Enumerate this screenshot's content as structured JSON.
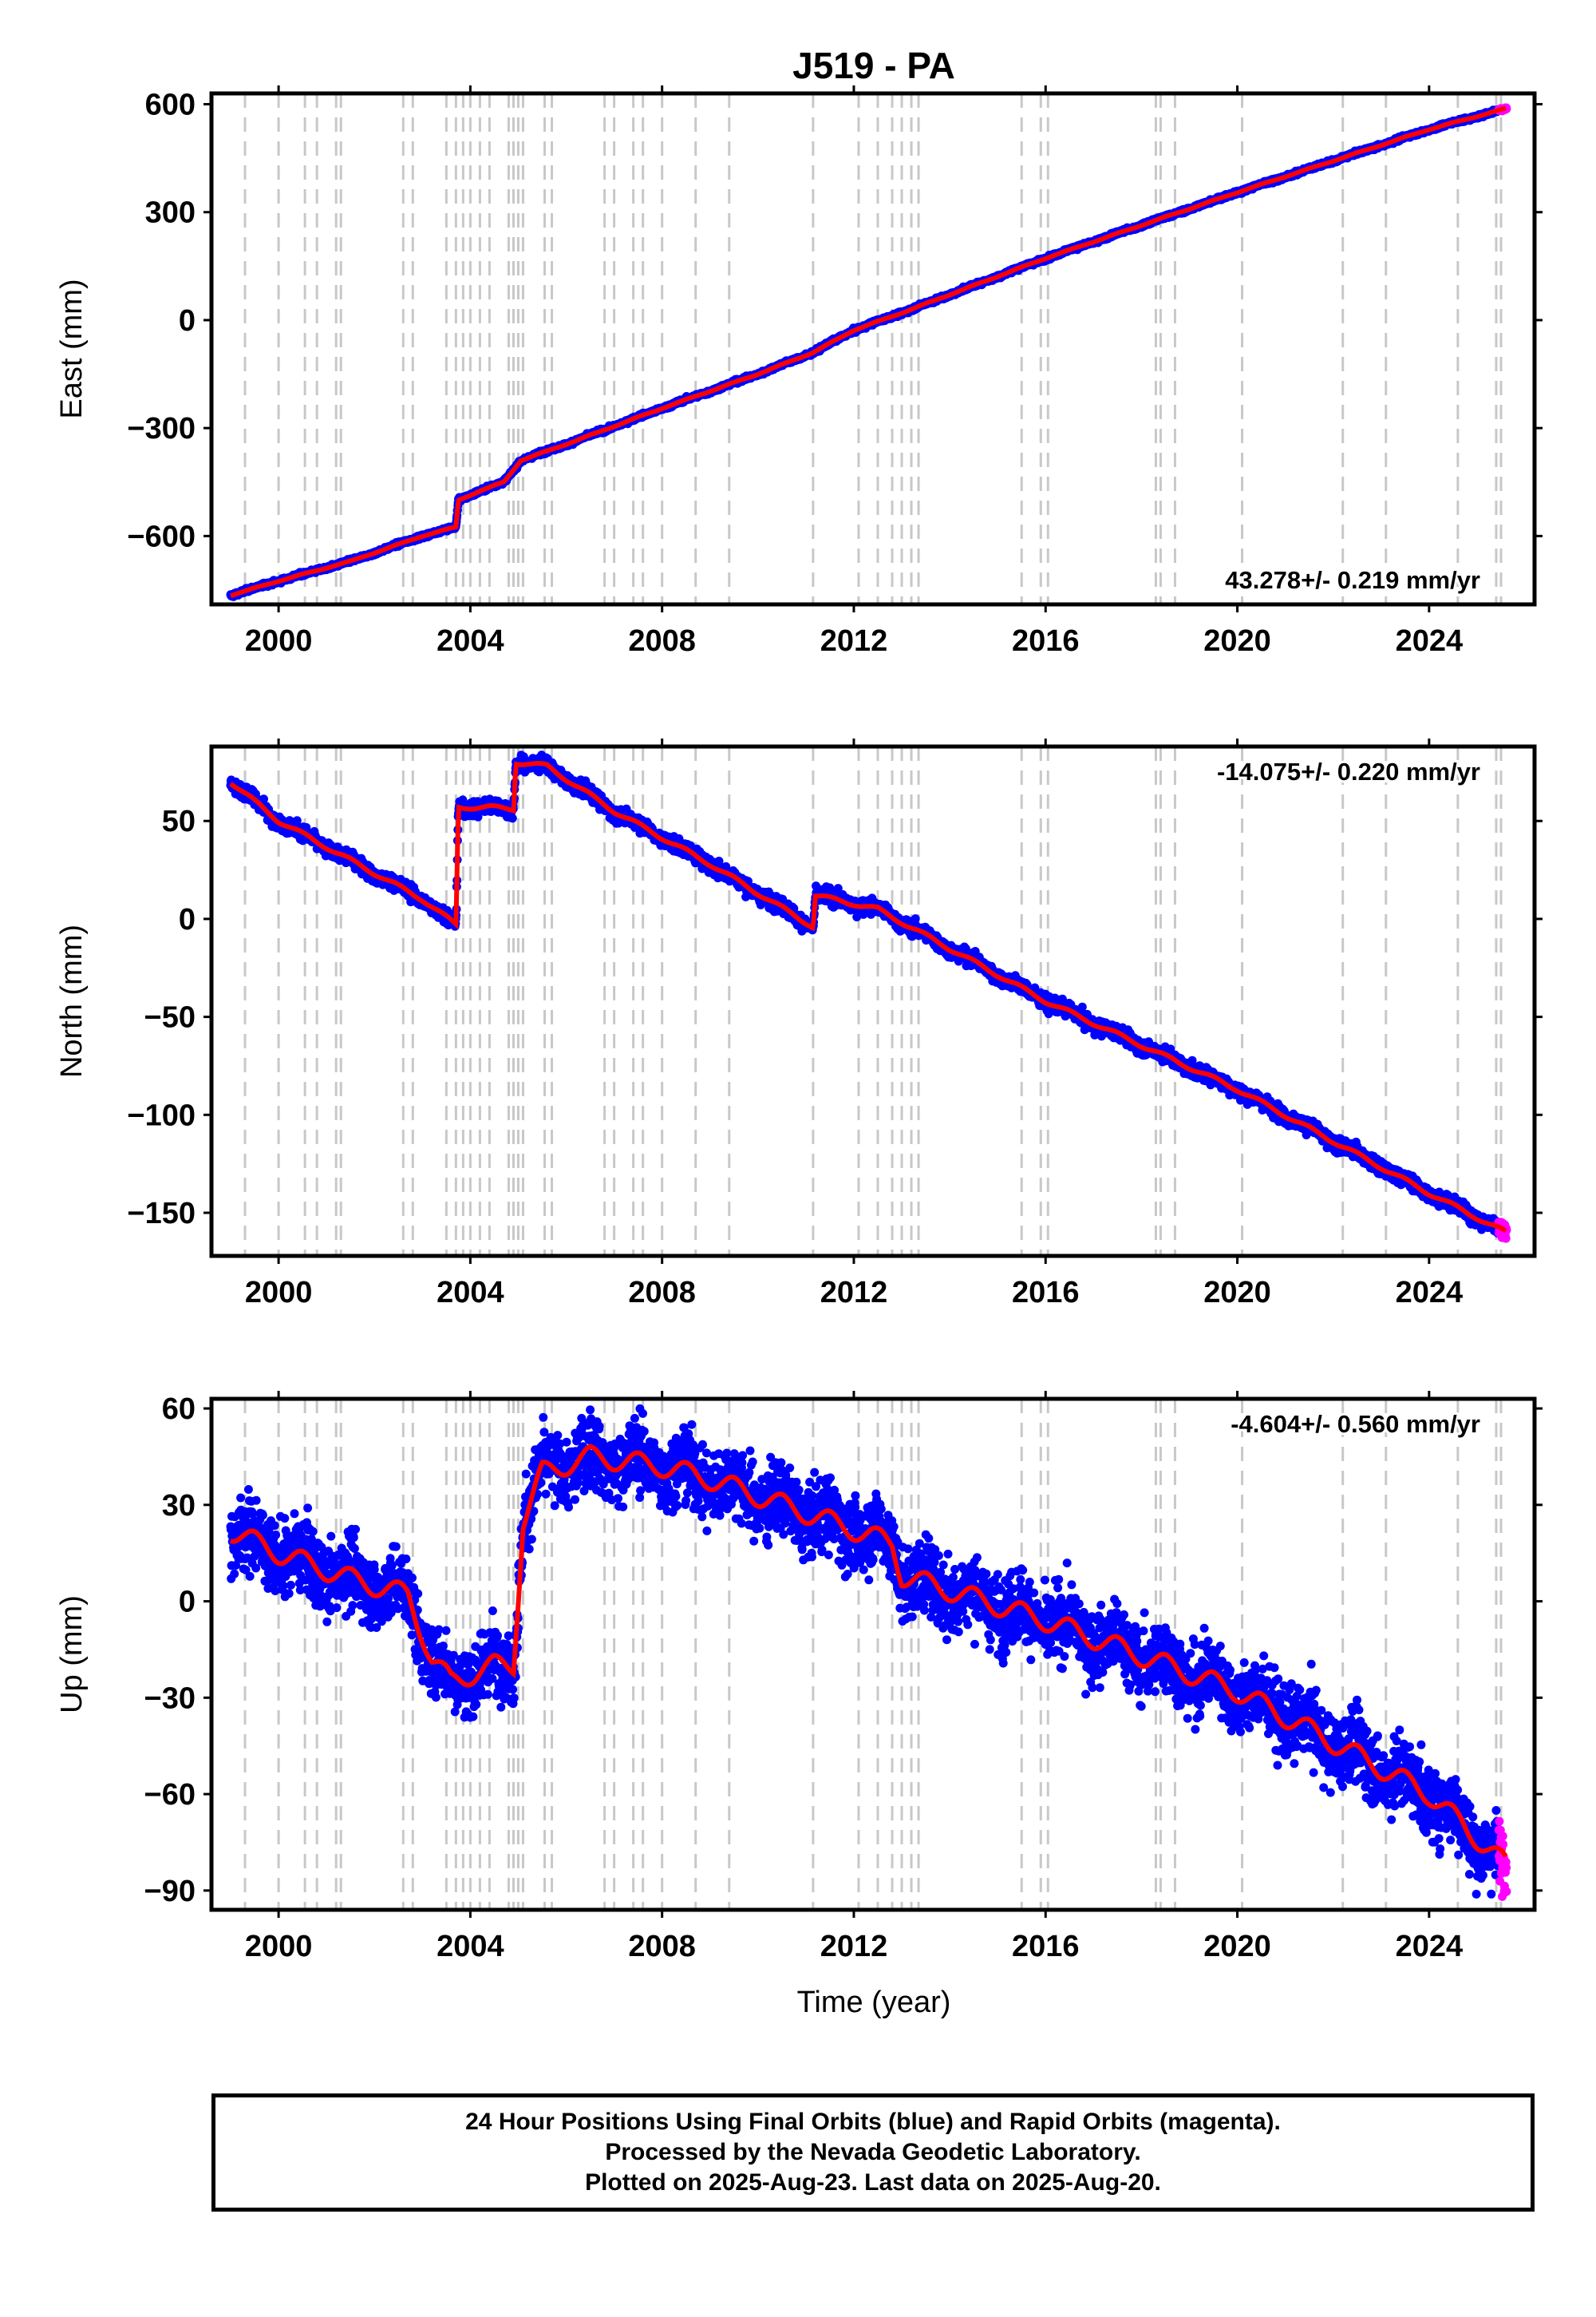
{
  "title": "J519 - PA",
  "xlabel": "Time (year)",
  "footer": {
    "line1": "24 Hour Positions Using Final Orbits (blue) and Rapid Orbits (magenta).",
    "line2": "Processed by the Nevada Geodetic Laboratory.",
    "line3": "Plotted on 2025-Aug-23. Last data on 2025-Aug-20."
  },
  "colors": {
    "final": "#0000ff",
    "rapid": "#ff00ff",
    "model": "#ff0000",
    "event_lines": "#c8c8c8"
  },
  "chart_data": {
    "type": "scatter",
    "x_ticks": [
      2000,
      2004,
      2008,
      2012,
      2016,
      2020,
      2024
    ],
    "x_tick_labels": [
      "2000",
      "2004",
      "2008",
      "2012",
      "2016",
      "2020",
      "2024"
    ],
    "xlim": [
      1998.6,
      2026.2
    ],
    "event_lines": [
      1999.3,
      2000.0,
      2000.55,
      2000.8,
      2001.2,
      2001.3,
      2002.6,
      2002.8,
      2003.5,
      2003.7,
      2003.85,
      2004.0,
      2004.2,
      2004.4,
      2004.8,
      2004.9,
      2005.0,
      2005.1,
      2005.55,
      2005.7,
      2006.8,
      2007.0,
      2007.4,
      2007.6,
      2008.0,
      2008.7,
      2009.4,
      2011.15,
      2012.1,
      2012.5,
      2012.8,
      2013.0,
      2013.2,
      2013.35,
      2015.5,
      2015.9,
      2016.05,
      2018.3,
      2018.4,
      2018.7,
      2020.1,
      2022.2,
      2023.1,
      2024.6,
      2025.4,
      2025.5
    ],
    "panels": [
      {
        "name": "East",
        "ylabel": "East (mm)",
        "ylim": [
          -790,
          630
        ],
        "yticks": [
          -600,
          -300,
          0,
          300,
          600
        ],
        "ytick_labels": [
          "−600",
          "−300",
          "0",
          "300",
          "600"
        ],
        "rate_label": "43.278+/- 0.219 mm/yr",
        "rate_position": "bottom-right",
        "model": [
          [
            1999.0,
            -765
          ],
          [
            2000.0,
            -725
          ],
          [
            2001.5,
            -670
          ],
          [
            2003.0,
            -600
          ],
          [
            2003.7,
            -575
          ],
          [
            2003.75,
            -500
          ],
          [
            2004.2,
            -475
          ],
          [
            2004.7,
            -450
          ],
          [
            2005.05,
            -390
          ],
          [
            2006.0,
            -345
          ],
          [
            2008.0,
            -245
          ],
          [
            2010.0,
            -150
          ],
          [
            2011.15,
            -90
          ],
          [
            2012.0,
            -28
          ],
          [
            2013.0,
            20
          ],
          [
            2016.0,
            172
          ],
          [
            2020.0,
            355
          ],
          [
            2024.0,
            530
          ],
          [
            2025.6,
            588
          ]
        ],
        "noise_sd": 2.5,
        "rapid_start": 2025.45
      },
      {
        "name": "North",
        "ylabel": "North (mm)",
        "ylim": [
          -172,
          88
        ],
        "yticks": [
          -150,
          -100,
          -50,
          0,
          50
        ],
        "ytick_labels": [
          "−150",
          "−100",
          "−50",
          "0",
          "50"
        ],
        "rate_label": "-14.075+/- 0.220 mm/yr",
        "rate_position": "top-right",
        "model": [
          [
            1999.0,
            70
          ],
          [
            2000.0,
            50
          ],
          [
            2001.5,
            30
          ],
          [
            2003.0,
            10
          ],
          [
            2003.7,
            -3
          ],
          [
            2003.75,
            57
          ],
          [
            2004.4,
            57
          ],
          [
            2004.9,
            56
          ],
          [
            2004.95,
            80
          ],
          [
            2005.6,
            78
          ],
          [
            2007.0,
            55
          ],
          [
            2009.0,
            28
          ],
          [
            2011.15,
            -4
          ],
          [
            2011.2,
            12
          ],
          [
            2012.5,
            5
          ],
          [
            2016.0,
            -42
          ],
          [
            2020.0,
            -87
          ],
          [
            2024.0,
            -140
          ],
          [
            2025.6,
            -160
          ]
        ],
        "noise_sd": 1.8,
        "rapid_start": 2025.45
      },
      {
        "name": "Up",
        "ylabel": "Up (mm)",
        "ylim": [
          -96,
          63
        ],
        "yticks": [
          -90,
          -60,
          -30,
          0,
          30,
          60
        ],
        "ytick_labels": [
          "−90",
          "−60",
          "−30",
          "0",
          "30",
          "60"
        ],
        "rate_label": "-4.604+/- 0.560 mm/yr",
        "rate_position": "top-right",
        "model": [
          [
            1999.0,
            22
          ],
          [
            2000.0,
            15
          ],
          [
            2001.5,
            7
          ],
          [
            2002.7,
            2
          ],
          [
            2003.2,
            -18
          ],
          [
            2003.6,
            -25
          ],
          [
            2004.5,
            -20
          ],
          [
            2004.9,
            -20
          ],
          [
            2005.1,
            25
          ],
          [
            2005.5,
            40
          ],
          [
            2006.5,
            45
          ],
          [
            2008.0,
            42
          ],
          [
            2009.0,
            38
          ],
          [
            2012.8,
            18
          ],
          [
            2013.0,
            8
          ],
          [
            2016.0,
            -6
          ],
          [
            2020.0,
            -28
          ],
          [
            2024.0,
            -60
          ],
          [
            2025.6,
            -82
          ]
        ],
        "noise_sd": 5.5,
        "rapid_start": 2025.45
      }
    ]
  }
}
